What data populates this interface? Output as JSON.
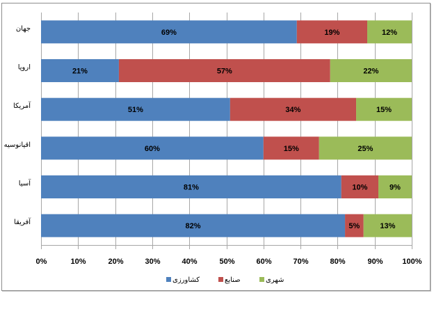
{
  "chart_data": {
    "type": "bar",
    "orientation": "horizontal",
    "stacked": "percent",
    "title": "",
    "xlabel": "",
    "ylabel": "",
    "xlim": [
      0,
      100
    ],
    "grid": true,
    "legend_position": "bottom",
    "categories": [
      "جهان",
      "اروپا",
      "آمریکا",
      "اقیانوسیه",
      "آسیا",
      "آفریقا"
    ],
    "x_ticks": [
      "0%",
      "10%",
      "20%",
      "30%",
      "40%",
      "50%",
      "60%",
      "70%",
      "80%",
      "90%",
      "100%"
    ],
    "series": [
      {
        "name": "کشاورزی",
        "color": "#4f81bd",
        "values": [
          69,
          21,
          51,
          60,
          81,
          82
        ],
        "labels": [
          "69%",
          "21%",
          "51%",
          "60%",
          "81%",
          "82%"
        ]
      },
      {
        "name": "صنایع",
        "color": "#c0504d",
        "values": [
          19,
          57,
          34,
          15,
          10,
          5
        ],
        "labels": [
          "19%",
          "57%",
          "34%",
          "15%",
          "10%",
          "5%"
        ]
      },
      {
        "name": "شهری",
        "color": "#9bbb59",
        "values": [
          12,
          22,
          15,
          25,
          9,
          13
        ],
        "labels": [
          "12%",
          "22%",
          "15%",
          "25%",
          "9%",
          "13%"
        ]
      }
    ]
  }
}
